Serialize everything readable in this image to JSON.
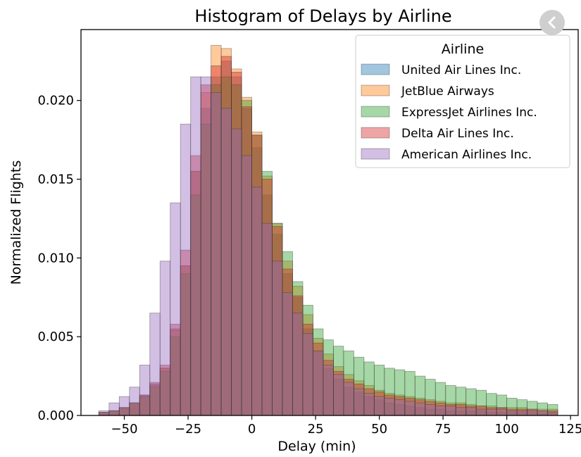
{
  "chart_data": {
    "type": "bar",
    "title": "Histogram of Delays by Airline",
    "xlabel": "Delay (min)",
    "ylabel": "Normalized Flights",
    "xlim": [
      -67,
      128
    ],
    "ylim": [
      0,
      0.0245
    ],
    "xticks": [
      -50,
      -25,
      0,
      25,
      50,
      75,
      100,
      125
    ],
    "xtick_labels": [
      "−50",
      "−25",
      "0",
      "25",
      "50",
      "75",
      "100",
      "125"
    ],
    "yticks": [
      0,
      0.005,
      0.01,
      0.015,
      0.02
    ],
    "ytick_labels": [
      "0.000",
      "0.005",
      "0.010",
      "0.015",
      "0.020"
    ],
    "grid": false,
    "legend": {
      "title": "Airline",
      "placement": "top-right"
    },
    "bin_edges": [
      -60,
      -56,
      -52,
      -48,
      -44,
      -40,
      -36,
      -32,
      -28,
      -24,
      -20,
      -16,
      -12,
      -8,
      -4,
      0,
      4,
      8,
      12,
      16,
      20,
      24,
      28,
      32,
      36,
      40,
      44,
      48,
      52,
      56,
      60,
      64,
      68,
      72,
      76,
      80,
      84,
      88,
      92,
      96,
      100,
      104,
      108,
      112,
      116,
      120
    ],
    "series": [
      {
        "name": "United Air Lines Inc.",
        "color": "#1f77b4",
        "values": [
          0.0002,
          0.0003,
          0.0005,
          0.0008,
          0.0013,
          0.002,
          0.003,
          0.0055,
          0.0095,
          0.0155,
          0.0195,
          0.0215,
          0.0225,
          0.0215,
          0.0195,
          0.017,
          0.014,
          0.0115,
          0.009,
          0.0075,
          0.0055,
          0.0041,
          0.003,
          0.0023,
          0.0018,
          0.0015,
          0.0012,
          0.001,
          0.0008,
          0.0007,
          0.0006,
          0.0005,
          0.0004,
          0.0004,
          0.0003,
          0.0003,
          0.0003,
          0.0003,
          0.0002,
          0.0002,
          0.0002,
          0.0002,
          0.0002,
          0.0001,
          0.0001
        ]
      },
      {
        "name": "JetBlue Airways",
        "color": "#ff7f0e",
        "values": [
          0.0002,
          0.0003,
          0.0005,
          0.0008,
          0.0012,
          0.0019,
          0.003,
          0.0054,
          0.0095,
          0.0155,
          0.0205,
          0.0235,
          0.0233,
          0.022,
          0.0202,
          0.018,
          0.0152,
          0.0122,
          0.0098,
          0.0082,
          0.0064,
          0.0049,
          0.0039,
          0.0031,
          0.0026,
          0.0022,
          0.0019,
          0.0016,
          0.0014,
          0.0013,
          0.0012,
          0.0011,
          0.001,
          0.0009,
          0.0008,
          0.0008,
          0.0007,
          0.0006,
          0.0006,
          0.0005,
          0.0005,
          0.0005,
          0.0004,
          0.0004,
          0.0004
        ]
      },
      {
        "name": "ExpressJet Airlines Inc.",
        "color": "#2ca02c",
        "values": [
          0.0002,
          0.0003,
          0.0005,
          0.0008,
          0.0012,
          0.0018,
          0.0028,
          0.005,
          0.009,
          0.014,
          0.0185,
          0.021,
          0.0215,
          0.021,
          0.02,
          0.0178,
          0.0155,
          0.0122,
          0.0104,
          0.0085,
          0.007,
          0.0055,
          0.0048,
          0.0044,
          0.0041,
          0.0037,
          0.0034,
          0.0032,
          0.003,
          0.0029,
          0.0028,
          0.0025,
          0.0023,
          0.0021,
          0.0019,
          0.0018,
          0.0017,
          0.0016,
          0.0014,
          0.0013,
          0.0011,
          0.001,
          0.0009,
          0.0008,
          0.0007
        ]
      },
      {
        "name": "Delta Air Lines Inc.",
        "color": "#d62728",
        "values": [
          0.0002,
          0.0003,
          0.0005,
          0.0008,
          0.0013,
          0.0021,
          0.0032,
          0.0058,
          0.0105,
          0.0165,
          0.021,
          0.0222,
          0.0228,
          0.0218,
          0.0196,
          0.0178,
          0.015,
          0.012,
          0.0093,
          0.0076,
          0.0058,
          0.0046,
          0.0035,
          0.0028,
          0.0023,
          0.002,
          0.0017,
          0.0015,
          0.0013,
          0.0012,
          0.0011,
          0.001,
          0.0009,
          0.0008,
          0.0007,
          0.0007,
          0.0006,
          0.0006,
          0.0005,
          0.0005,
          0.0004,
          0.0004,
          0.0004,
          0.0003,
          0.0003
        ]
      },
      {
        "name": "American Airlines Inc.",
        "color": "#9467bd",
        "values": [
          0.0003,
          0.0008,
          0.0012,
          0.0018,
          0.0032,
          0.0065,
          0.0098,
          0.0135,
          0.0185,
          0.0215,
          0.0215,
          0.0205,
          0.0195,
          0.0182,
          0.0165,
          0.0145,
          0.0122,
          0.0098,
          0.0078,
          0.0065,
          0.0052,
          0.0041,
          0.0032,
          0.0026,
          0.0021,
          0.0017,
          0.0014,
          0.0012,
          0.0011,
          0.001,
          0.0009,
          0.0008,
          0.0007,
          0.0006,
          0.0006,
          0.0005,
          0.0005,
          0.0004,
          0.0004,
          0.0004,
          0.0003,
          0.0003,
          0.0003,
          0.0003,
          0.0002
        ]
      }
    ]
  },
  "ui": {
    "back_icon": "chevron-left-icon"
  }
}
